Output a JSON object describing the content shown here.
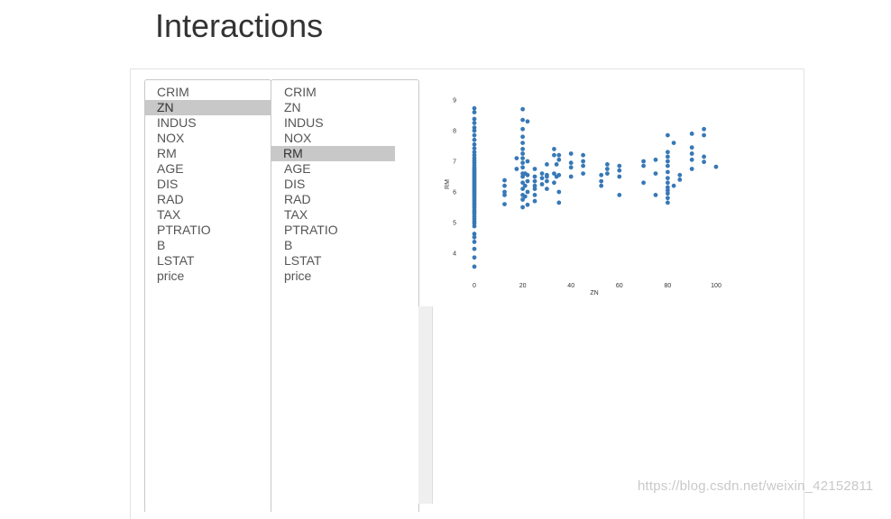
{
  "page": {
    "title": "Interactions"
  },
  "x_select": {
    "options": [
      "CRIM",
      "ZN",
      "INDUS",
      "NOX",
      "RM",
      "AGE",
      "DIS",
      "RAD",
      "TAX",
      "PTRATIO",
      "B",
      "LSTAT",
      "price"
    ],
    "selected": "ZN"
  },
  "y_select": {
    "options": [
      "CRIM",
      "ZN",
      "INDUS",
      "NOX",
      "RM",
      "AGE",
      "DIS",
      "RAD",
      "TAX",
      "PTRATIO",
      "B",
      "LSTAT",
      "price"
    ],
    "selected": "RM"
  },
  "colors": {
    "point": "#3778b7",
    "selection": "#c8c8c8"
  },
  "watermark": "https://blog.csdn.net/weixin_42152811",
  "chart_data": {
    "type": "scatter",
    "xlabel": "ZN",
    "ylabel": "RM",
    "x_ticks": [
      "0",
      "20",
      "40",
      "60",
      "80",
      "100"
    ],
    "y_ticks": [
      "4",
      "5",
      "6",
      "7",
      "8",
      "9"
    ],
    "xlim": [
      0,
      100
    ],
    "ylim": [
      3.5,
      9
    ],
    "points": [
      [
        0,
        3.56
      ],
      [
        0,
        3.86
      ],
      [
        0,
        4.14
      ],
      [
        0,
        4.37
      ],
      [
        0,
        4.52
      ],
      [
        0,
        4.63
      ],
      [
        0,
        4.88
      ],
      [
        0,
        4.97
      ],
      [
        0,
        5.04
      ],
      [
        0,
        5.12
      ],
      [
        0,
        5.2
      ],
      [
        0,
        5.28
      ],
      [
        0,
        5.35
      ],
      [
        0,
        5.41
      ],
      [
        0,
        5.48
      ],
      [
        0,
        5.55
      ],
      [
        0,
        5.6
      ],
      [
        0,
        5.66
      ],
      [
        0,
        5.72
      ],
      [
        0,
        5.78
      ],
      [
        0,
        5.84
      ],
      [
        0,
        5.9
      ],
      [
        0,
        5.95
      ],
      [
        0,
        6.0
      ],
      [
        0,
        6.05
      ],
      [
        0,
        6.1
      ],
      [
        0,
        6.15
      ],
      [
        0,
        6.2
      ],
      [
        0,
        6.25
      ],
      [
        0,
        6.3
      ],
      [
        0,
        6.35
      ],
      [
        0,
        6.4
      ],
      [
        0,
        6.45
      ],
      [
        0,
        6.5
      ],
      [
        0,
        6.55
      ],
      [
        0,
        6.6
      ],
      [
        0,
        6.65
      ],
      [
        0,
        6.7
      ],
      [
        0,
        6.75
      ],
      [
        0,
        6.8
      ],
      [
        0,
        6.87
      ],
      [
        0,
        6.95
      ],
      [
        0,
        7.02
      ],
      [
        0,
        7.1
      ],
      [
        0,
        7.2
      ],
      [
        0,
        7.3
      ],
      [
        0,
        7.42
      ],
      [
        0,
        7.55
      ],
      [
        0,
        7.7
      ],
      [
        0,
        7.85
      ],
      [
        0,
        8.0
      ],
      [
        0,
        8.1
      ],
      [
        0,
        8.25
      ],
      [
        0,
        8.38
      ],
      [
        0,
        8.6
      ],
      [
        0,
        8.73
      ],
      [
        12.5,
        5.6
      ],
      [
        12.5,
        5.9
      ],
      [
        12.5,
        6.0
      ],
      [
        12.5,
        6.2
      ],
      [
        12.5,
        6.38
      ],
      [
        17.5,
        6.75
      ],
      [
        17.5,
        7.1
      ],
      [
        20,
        5.5
      ],
      [
        20,
        5.75
      ],
      [
        20,
        5.9
      ],
      [
        20,
        6.1
      ],
      [
        20,
        6.3
      ],
      [
        20,
        6.5
      ],
      [
        20,
        6.6
      ],
      [
        20,
        6.8
      ],
      [
        20,
        6.95
      ],
      [
        20,
        7.1
      ],
      [
        20,
        7.25
      ],
      [
        20,
        7.4
      ],
      [
        20,
        7.6
      ],
      [
        20,
        7.8
      ],
      [
        20,
        8.05
      ],
      [
        20,
        8.35
      ],
      [
        20,
        8.7
      ],
      [
        21,
        6.2
      ],
      [
        21,
        5.85
      ],
      [
        21,
        6.6
      ],
      [
        22,
        5.58
      ],
      [
        22,
        6.0
      ],
      [
        22,
        6.35
      ],
      [
        22,
        6.55
      ],
      [
        22,
        7.0
      ],
      [
        22,
        8.3
      ],
      [
        25,
        5.7
      ],
      [
        25,
        5.9
      ],
      [
        25,
        6.1
      ],
      [
        25,
        6.2
      ],
      [
        25,
        6.35
      ],
      [
        25,
        6.5
      ],
      [
        25,
        6.75
      ],
      [
        28,
        6.25
      ],
      [
        28,
        6.45
      ],
      [
        28,
        6.6
      ],
      [
        30,
        6.1
      ],
      [
        30,
        6.35
      ],
      [
        30,
        6.5
      ],
      [
        30,
        6.55
      ],
      [
        30,
        6.9
      ],
      [
        33,
        6.3
      ],
      [
        33,
        6.6
      ],
      [
        33,
        7.2
      ],
      [
        33,
        7.4
      ],
      [
        34,
        6.9
      ],
      [
        34,
        6.5
      ],
      [
        35,
        5.65
      ],
      [
        35,
        6.0
      ],
      [
        35,
        6.55
      ],
      [
        35,
        7.05
      ],
      [
        35,
        7.2
      ],
      [
        40,
        6.5
      ],
      [
        40,
        6.8
      ],
      [
        40,
        6.95
      ],
      [
        40,
        7.25
      ],
      [
        45,
        6.6
      ],
      [
        45,
        6.85
      ],
      [
        45,
        7.0
      ],
      [
        45,
        7.2
      ],
      [
        52.5,
        6.2
      ],
      [
        52.5,
        6.35
      ],
      [
        52.5,
        6.55
      ],
      [
        55,
        6.6
      ],
      [
        55,
        6.75
      ],
      [
        55,
        6.9
      ],
      [
        60,
        5.9
      ],
      [
        60,
        6.5
      ],
      [
        60,
        6.7
      ],
      [
        60,
        6.85
      ],
      [
        70,
        6.3
      ],
      [
        70,
        6.85
      ],
      [
        70,
        7.0
      ],
      [
        75,
        5.9
      ],
      [
        75,
        6.6
      ],
      [
        75,
        7.05
      ],
      [
        80,
        5.65
      ],
      [
        80,
        5.8
      ],
      [
        80,
        5.95
      ],
      [
        80,
        6.05
      ],
      [
        80,
        6.15
      ],
      [
        80,
        6.3
      ],
      [
        80,
        6.45
      ],
      [
        80,
        6.65
      ],
      [
        80,
        6.85
      ],
      [
        80,
        7.0
      ],
      [
        80,
        7.15
      ],
      [
        80,
        7.3
      ],
      [
        80,
        7.85
      ],
      [
        82.5,
        6.2
      ],
      [
        82.5,
        7.6
      ],
      [
        85,
        6.4
      ],
      [
        85,
        6.55
      ],
      [
        90,
        6.75
      ],
      [
        90,
        7.05
      ],
      [
        90,
        7.25
      ],
      [
        90,
        7.45
      ],
      [
        90,
        7.9
      ],
      [
        95,
        6.98
      ],
      [
        95,
        7.15
      ],
      [
        95,
        7.85
      ],
      [
        95,
        8.05
      ],
      [
        100,
        6.82
      ]
    ]
  }
}
